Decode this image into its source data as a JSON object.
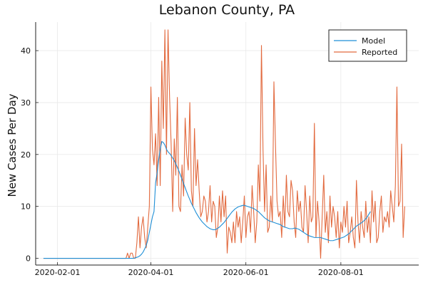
{
  "chart_data": {
    "type": "line",
    "title": "Lebanon County, PA",
    "xlabel": "",
    "ylabel": "New Cases Per Day",
    "x_start": "2020-01-23",
    "x_end": "2020-09-16",
    "xlim": [
      "2020-01-18",
      "2020-09-20"
    ],
    "ylim": [
      -1.3,
      45.5
    ],
    "x_ticks": [
      "2020-02-01",
      "2020-04-01",
      "2020-06-01",
      "2020-08-01"
    ],
    "y_ticks": [
      0,
      10,
      20,
      30,
      40
    ],
    "grid": true,
    "legend_position": "top-right",
    "series": [
      {
        "name": "Model",
        "color": "#1f8fd6",
        "values": [
          0,
          0,
          0,
          0,
          0,
          0,
          0,
          0,
          0,
          0,
          0,
          0,
          0,
          0,
          0,
          0,
          0,
          0,
          0,
          0,
          0,
          0,
          0,
          0,
          0,
          0,
          0,
          0,
          0,
          0,
          0,
          0,
          0,
          0,
          0,
          0,
          0,
          0,
          0,
          0,
          0,
          0,
          0,
          0,
          0,
          0,
          0,
          0,
          0,
          0,
          0,
          0,
          0,
          0,
          0,
          0,
          0,
          0,
          0,
          0.1,
          0.2,
          0.3,
          0.5,
          0.8,
          1.2,
          1.8,
          2.5,
          3.5,
          5.0,
          6.5,
          8.0,
          9.0,
          14.5,
          16.5,
          19.0,
          21.0,
          22.5,
          22.3,
          21.8,
          21.0,
          20.5,
          20.2,
          19.8,
          19.3,
          18.8,
          18.2,
          17.5,
          16.8,
          16.0,
          15.2,
          14.4,
          13.6,
          12.8,
          12.0,
          11.3,
          10.6,
          10.0,
          9.4,
          8.8,
          8.3,
          7.8,
          7.4,
          7.0,
          6.7,
          6.4,
          6.1,
          5.9,
          5.7,
          5.6,
          5.5,
          5.5,
          5.6,
          5.8,
          6.0,
          6.3,
          6.6,
          6.9,
          7.3,
          7.7,
          8.1,
          8.5,
          8.9,
          9.2,
          9.5,
          9.7,
          9.9,
          10.0,
          10.1,
          10.2,
          10.2,
          10.1,
          10.0,
          9.9,
          9.8,
          9.7,
          9.6,
          9.4,
          9.2,
          9.0,
          8.7,
          8.4,
          8.1,
          7.8,
          7.6,
          7.4,
          7.2,
          7.1,
          7.0,
          6.9,
          6.8,
          6.7,
          6.6,
          6.5,
          6.3,
          6.1,
          6.0,
          5.9,
          5.8,
          5.7,
          5.7,
          5.7,
          5.8,
          5.8,
          5.7,
          5.6,
          5.4,
          5.2,
          5.0,
          4.8,
          4.6,
          4.4,
          4.3,
          4.2,
          4.1,
          4.0,
          4.0,
          4.0,
          4.0,
          4.0,
          3.9,
          3.8,
          3.7,
          3.6,
          3.5,
          3.4,
          3.4,
          3.4,
          3.5,
          3.6,
          3.7,
          3.8,
          3.9,
          4.0,
          4.1,
          4.3,
          4.5,
          4.7,
          5.0,
          5.3,
          5.6,
          5.9,
          6.2,
          6.4,
          6.6,
          6.8,
          7.0,
          7.3,
          7.6,
          8.0,
          8.5,
          9.0
        ]
      },
      {
        "name": "Reported",
        "color": "#e26a3f",
        "values": [
          0,
          0,
          0,
          0,
          0,
          0,
          0,
          0,
          0,
          0,
          0,
          0,
          0,
          0,
          0,
          0,
          0,
          0,
          0,
          0,
          0,
          0,
          0,
          0,
          0,
          0,
          0,
          0,
          0,
          0,
          0,
          0,
          0,
          0,
          0,
          0,
          0,
          0,
          0,
          0,
          0,
          0,
          0,
          0,
          0,
          0,
          0,
          0,
          0,
          0,
          0,
          0,
          0,
          0,
          1,
          0,
          1,
          1,
          0,
          0,
          3,
          8,
          2,
          6,
          8,
          4,
          2,
          6,
          10,
          33,
          21,
          18,
          24,
          14,
          31,
          14,
          38,
          25,
          44,
          20,
          44,
          31,
          22,
          9,
          23,
          16,
          31,
          10,
          9,
          18,
          12,
          27,
          20,
          17,
          30,
          13,
          10,
          25,
          14,
          19,
          13,
          8,
          9,
          12,
          11,
          7,
          9,
          14,
          7,
          11,
          10,
          4,
          6,
          12,
          7,
          13,
          8,
          12,
          1,
          6,
          5,
          3,
          7,
          3,
          9,
          6,
          8,
          3,
          7,
          12,
          4,
          8,
          9,
          5,
          14,
          9,
          3,
          7,
          18,
          11,
          41,
          21,
          9,
          18,
          5,
          6,
          12,
          7,
          34,
          22,
          11,
          8,
          9,
          4,
          12,
          6,
          16,
          9,
          8,
          15,
          13,
          7,
          4,
          13,
          9,
          11,
          6,
          5,
          14,
          9,
          3,
          12,
          7,
          8,
          26,
          4,
          11,
          7,
          0,
          8,
          16,
          5,
          9,
          3,
          12,
          6,
          10,
          8,
          4,
          9,
          2,
          7,
          5,
          10,
          6,
          11,
          3,
          5,
          8,
          4,
          2,
          15,
          7,
          3,
          9,
          6,
          4,
          11,
          5,
          8,
          3,
          13,
          7,
          11,
          3,
          4,
          9,
          12,
          5,
          8,
          7,
          9,
          6,
          13,
          10,
          7,
          14,
          33,
          10,
          11,
          22,
          4,
          10
        ]
      }
    ]
  }
}
